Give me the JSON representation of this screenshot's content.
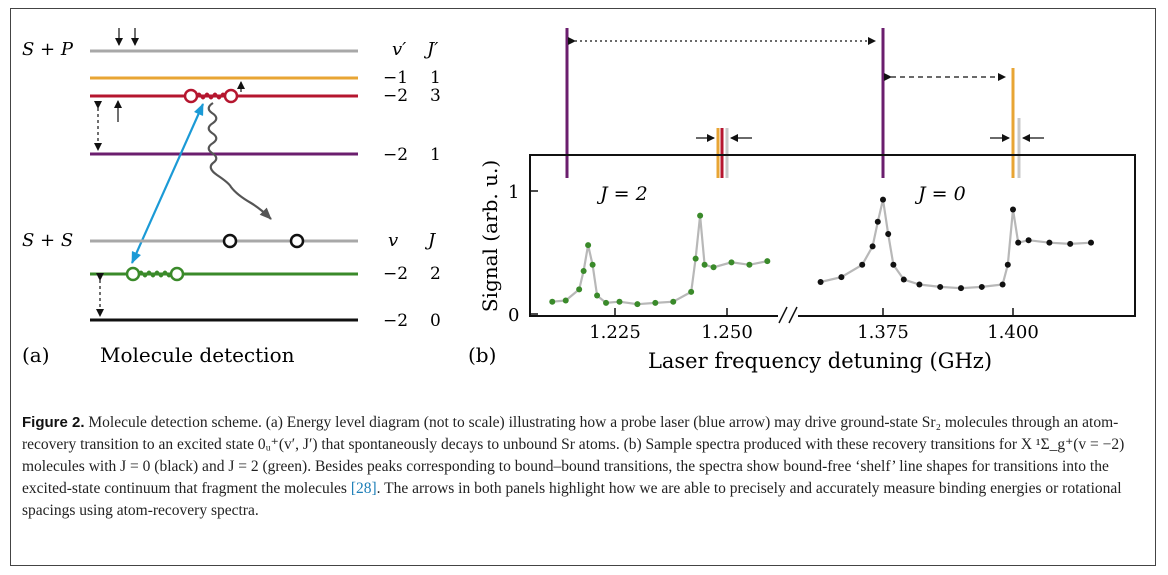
{
  "figure": {
    "panel_a": {
      "label": "(a)",
      "title": "Molecule detection",
      "upper_asymptote": "S + P",
      "lower_asymptote": "S + S",
      "upper_headers": [
        "v′",
        "J′"
      ],
      "lower_headers": [
        "v",
        "J"
      ],
      "levels": [
        {
          "v": "−1",
          "j": "1",
          "color": "#e8a534"
        },
        {
          "v": "−2",
          "j": "3",
          "color": "#b5162f"
        },
        {
          "v": "−2",
          "j": "1",
          "color": "#6b1e6e"
        },
        {
          "v": "−2",
          "j": "2",
          "color": "#3a8a2a"
        },
        {
          "v": "−2",
          "j": "0",
          "color": "#111111"
        }
      ],
      "colors": {
        "asymptote": "#a8a8a8",
        "probe_arrow": "#1b9ad6",
        "decay_arrow": "#555555"
      }
    },
    "panel_b": {
      "label": "(b)",
      "region_labels": [
        "J = 2",
        "J = 0"
      ],
      "colors": {
        "j2_points": "#3a8a2a",
        "j0_points": "#111111",
        "fit": "#b8b8b8",
        "marker_purple": "#6b1e6e"
      }
    }
  },
  "chart_data": {
    "type": "scatter",
    "xlabel": "Laser frequency detuning (GHz)",
    "ylabel": "Signal (arb. u.)",
    "ylim": [
      0,
      1.25
    ],
    "axis_break": "between 1.260 and 1.360",
    "x_ticks": [
      "1.225",
      "1.250",
      "1.375",
      "1.400"
    ],
    "y_ticks": [
      "0",
      "1"
    ],
    "series": [
      {
        "name": "J = 2",
        "color": "#3a8a2a",
        "x": [
          1.211,
          1.214,
          1.217,
          1.218,
          1.219,
          1.22,
          1.221,
          1.223,
          1.226,
          1.23,
          1.234,
          1.238,
          1.242,
          1.243,
          1.244,
          1.245,
          1.247,
          1.251,
          1.255,
          1.259
        ],
        "y": [
          0.1,
          0.11,
          0.2,
          0.35,
          0.56,
          0.4,
          0.15,
          0.09,
          0.1,
          0.08,
          0.09,
          0.1,
          0.18,
          0.45,
          0.8,
          0.4,
          0.38,
          0.42,
          0.4,
          0.43
        ]
      },
      {
        "name": "J = 0",
        "color": "#111111",
        "x": [
          1.363,
          1.367,
          1.371,
          1.373,
          1.374,
          1.375,
          1.376,
          1.377,
          1.379,
          1.382,
          1.386,
          1.39,
          1.394,
          1.398,
          1.399,
          1.4,
          1.401,
          1.403,
          1.407,
          1.411,
          1.415
        ],
        "y": [
          0.26,
          0.3,
          0.4,
          0.55,
          0.75,
          0.93,
          0.65,
          0.4,
          0.28,
          0.24,
          0.22,
          0.21,
          0.22,
          0.24,
          0.4,
          0.85,
          0.58,
          0.6,
          0.58,
          0.57,
          0.58
        ]
      }
    ]
  },
  "caption": {
    "lead": "Figure 2.",
    "text_before_ref": " Molecule detection scheme. (a) Energy level diagram (not to scale) illustrating how a probe laser (blue arrow) may drive ground-state Sr₂ molecules through an atom-recovery transition to an excited state 0ᵤ⁺(v′, J′) that spontaneously decays to unbound Sr atoms. (b) Sample spectra produced with these recovery transitions for X ¹Σ_g⁺(v = −2) molecules with J = 0 (black) and J = 2 (green). Besides peaks corresponding to bound–bound transitions, the spectra show bound-free ‘shelf’ line shapes for transitions into the excited-state continuum that fragment the molecules ",
    "ref": "[28]",
    "text_after_ref": ". The arrows in both panels highlight how we are able to precisely and accurately measure binding energies or rotational spacings using atom-recovery spectra."
  }
}
